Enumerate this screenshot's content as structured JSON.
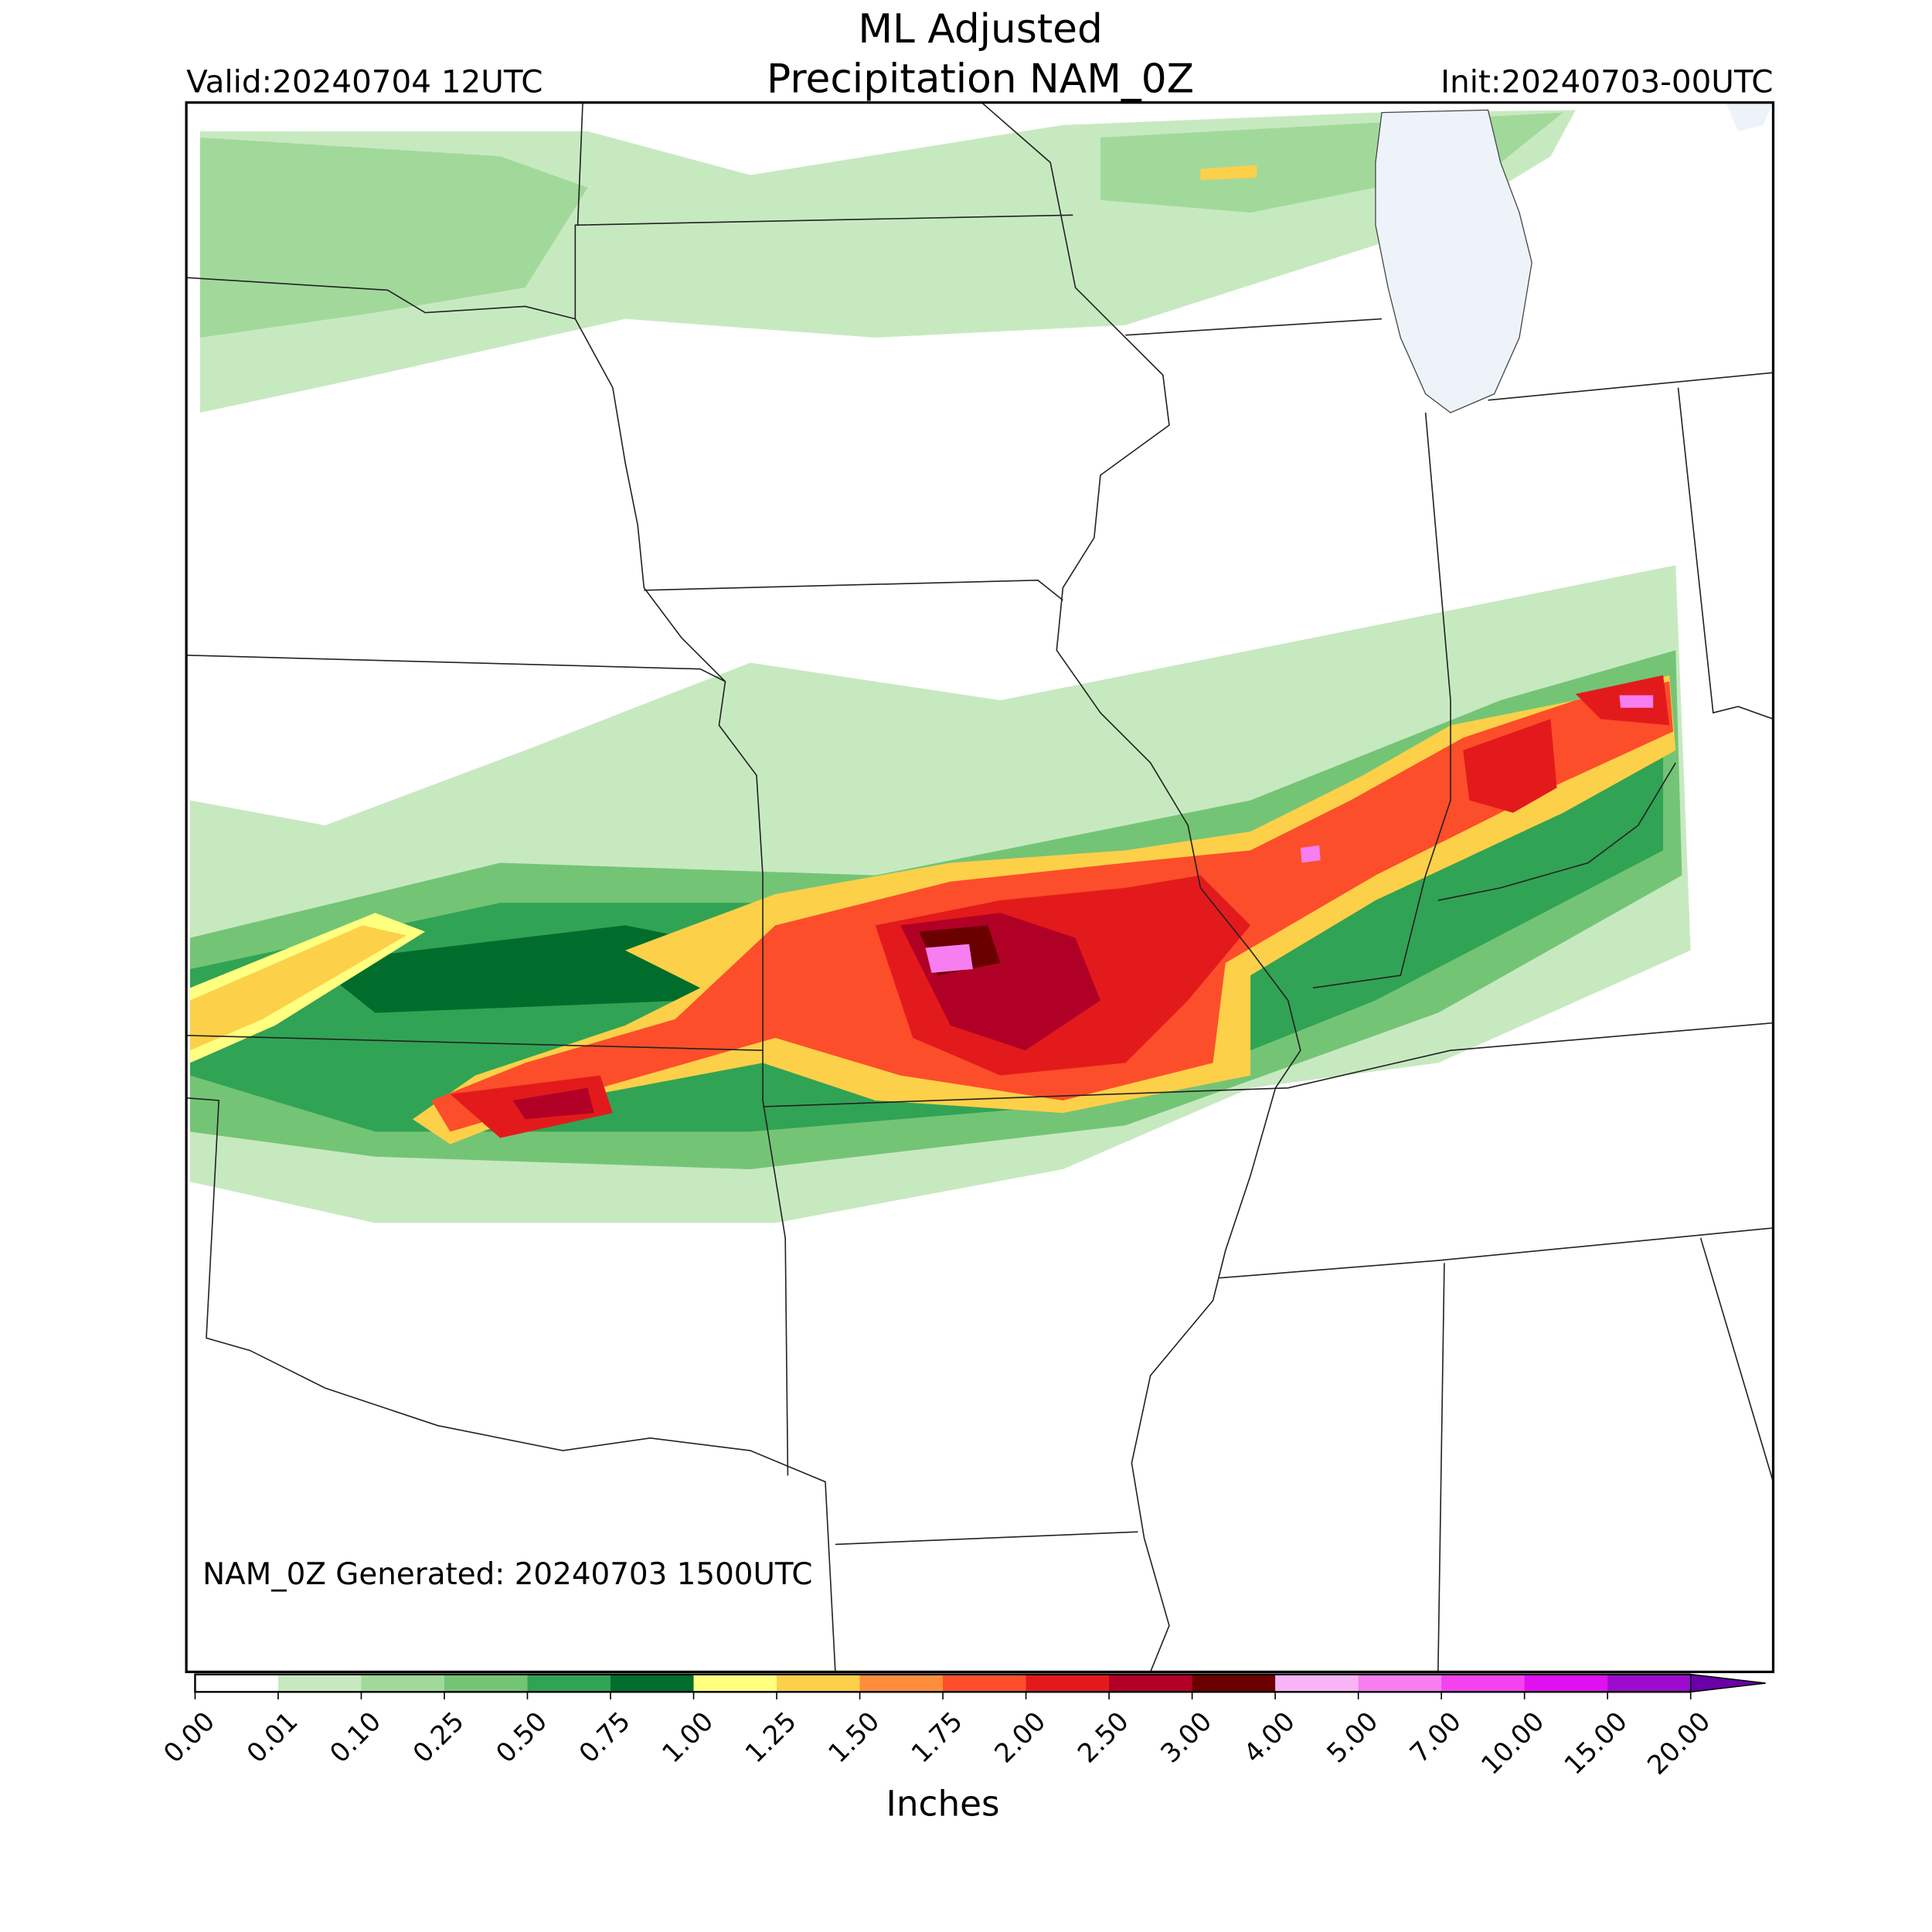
{
  "header": {
    "title": [
      "ML Adjusted",
      "Precipitation NAM_0Z"
    ],
    "valid": "Valid:20240704 12UTC",
    "init": "Init:20240703-00UTC"
  },
  "map": {
    "note": "NAM_0Z Generated: 20240703 1500UTC"
  },
  "colorbar": {
    "label": "Inches",
    "ticks": [
      "0.00",
      "0.01",
      "0.10",
      "0.25",
      "0.50",
      "0.75",
      "1.00",
      "1.25",
      "1.50",
      "1.75",
      "2.00",
      "2.50",
      "3.00",
      "4.00",
      "5.00",
      "7.00",
      "10.00",
      "15.00",
      "20.00"
    ],
    "colors": [
      "#ffffff",
      "#c7e9c0",
      "#a1d99b",
      "#74c476",
      "#31a354",
      "#006d2c",
      "#ffff80",
      "#fdd049",
      "#fd8d3c",
      "#fc4e2a",
      "#e31a1c",
      "#b10026",
      "#6b0000",
      "#f9b4f5",
      "#f77ef0",
      "#f542ef",
      "#e011f0",
      "#9c0ccf"
    ],
    "extend_color": "#6a00a8"
  }
}
